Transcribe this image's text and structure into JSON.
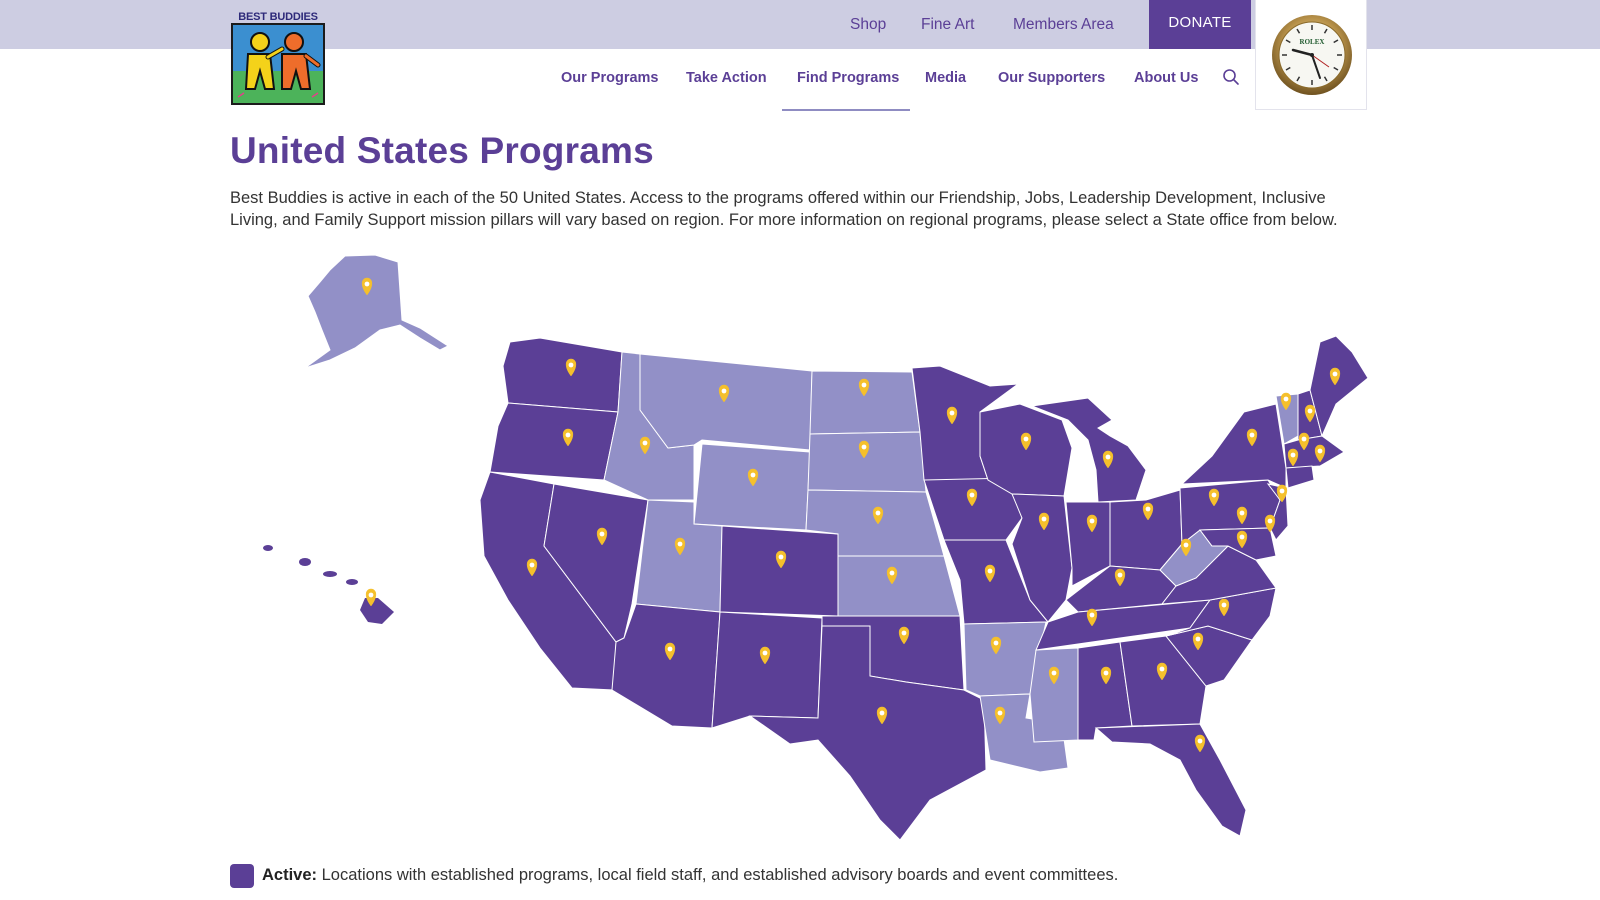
{
  "header": {
    "utility_links": [
      "Shop",
      "Fine Art",
      "Members Area"
    ],
    "donate_label": "DONATE",
    "logo_text": "BEST BUDDIES",
    "clock_brand": "ROLEX"
  },
  "nav": {
    "items": [
      "Our Programs",
      "Take Action",
      "Find Programs",
      "Media",
      "Our Supporters",
      "About Us"
    ],
    "active_item": "Find Programs"
  },
  "page": {
    "title": "United States Programs",
    "intro": "Best Buddies is active in each of the 50 United States. Access to the programs offered within our Friendship, Jobs, Leadership Development, Inclusive Living, and Family Support mission pillars will vary based on region. For more information on regional programs, please select a State office from below."
  },
  "map": {
    "active_color": "#5b3f96",
    "inactive_color": "#9290c7",
    "pin_color": "#f5c02c"
  },
  "legend": {
    "label": "Active:",
    "description": " Locations with established programs, local field staff, and established advisory boards and event committees."
  }
}
